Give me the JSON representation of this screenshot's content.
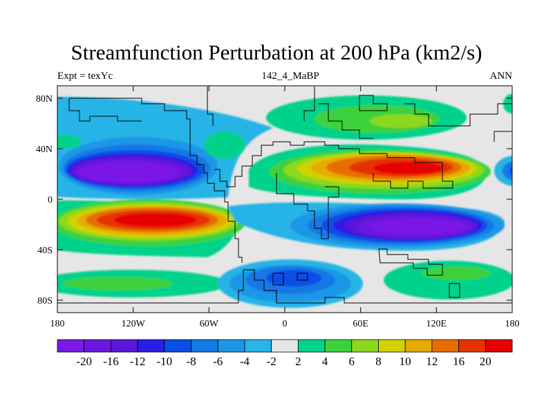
{
  "title": "Streamfunction Perturbation at 200 hPa (km2/s)",
  "subtitle_left": "Expt = texYc",
  "subtitle_center": "142_4_MaBP",
  "subtitle_right": "ANN",
  "map": {
    "projection": "cylindrical equidistant",
    "lon_range": [
      -180,
      180
    ],
    "lat_range": [
      -90,
      90
    ],
    "y_ticks": [
      "80N",
      "40N",
      "0",
      "40S",
      "80S"
    ],
    "x_ticks": [
      "180",
      "120W",
      "60W",
      "0",
      "60E",
      "120E",
      "180"
    ]
  },
  "colorbar": {
    "labels": [
      "-20",
      "-16",
      "-12",
      "-10",
      "-8",
      "-6",
      "-4",
      "-2",
      "2",
      "4",
      "6",
      "8",
      "10",
      "12",
      "16",
      "20"
    ],
    "colors": [
      "#7a18e6",
      "#6a18e0",
      "#5a18d8",
      "#2a1ee6",
      "#0a4ee6",
      "#1478e6",
      "#1e96e6",
      "#28b4e6",
      "#e6e6e6",
      "#00d28c",
      "#3cd23c",
      "#8cd81e",
      "#d2d200",
      "#e6aa00",
      "#e66e00",
      "#e63200",
      "#e60000"
    ]
  }
}
